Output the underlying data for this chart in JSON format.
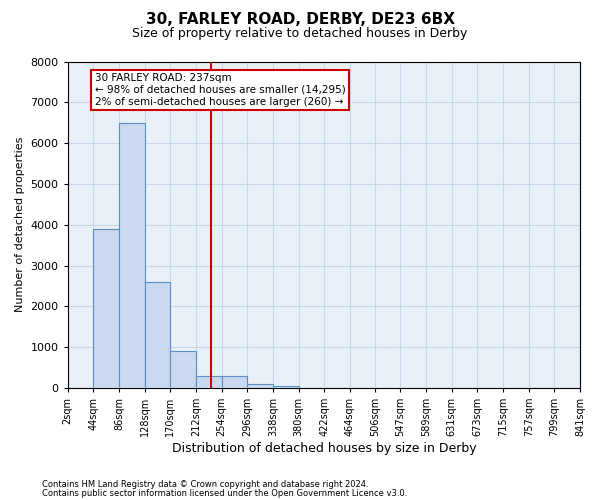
{
  "title1": "30, FARLEY ROAD, DERBY, DE23 6BX",
  "title2": "Size of property relative to detached houses in Derby",
  "xlabel": "Distribution of detached houses by size in Derby",
  "ylabel": "Number of detached properties",
  "bin_edges": [
    2,
    44,
    86,
    128,
    170,
    212,
    254,
    296,
    338,
    380,
    422,
    464,
    506,
    547,
    589,
    631,
    673,
    715,
    757,
    799,
    841
  ],
  "bar_heights": [
    0,
    3900,
    6500,
    2600,
    900,
    300,
    300,
    100,
    50,
    0,
    0,
    0,
    0,
    0,
    0,
    0,
    0,
    0,
    0,
    0
  ],
  "bar_color": "#cad9ef",
  "bar_edgecolor": "#5b8ec4",
  "red_line_x": 237,
  "red_line_color": "#cc0000",
  "annotation_line1": "30 FARLEY ROAD: 237sqm",
  "annotation_line2": "← 98% of detached houses are smaller (14,295)",
  "annotation_line3": "2% of semi-detached houses are larger (260) →",
  "ylim": [
    0,
    8000
  ],
  "yticks": [
    0,
    1000,
    2000,
    3000,
    4000,
    5000,
    6000,
    7000,
    8000
  ],
  "footer1": "Contains HM Land Registry data © Crown copyright and database right 2024.",
  "footer2": "Contains public sector information licensed under the Open Government Licence v3.0.",
  "background_color": "#ffffff",
  "grid_color": "#c8d8e8"
}
